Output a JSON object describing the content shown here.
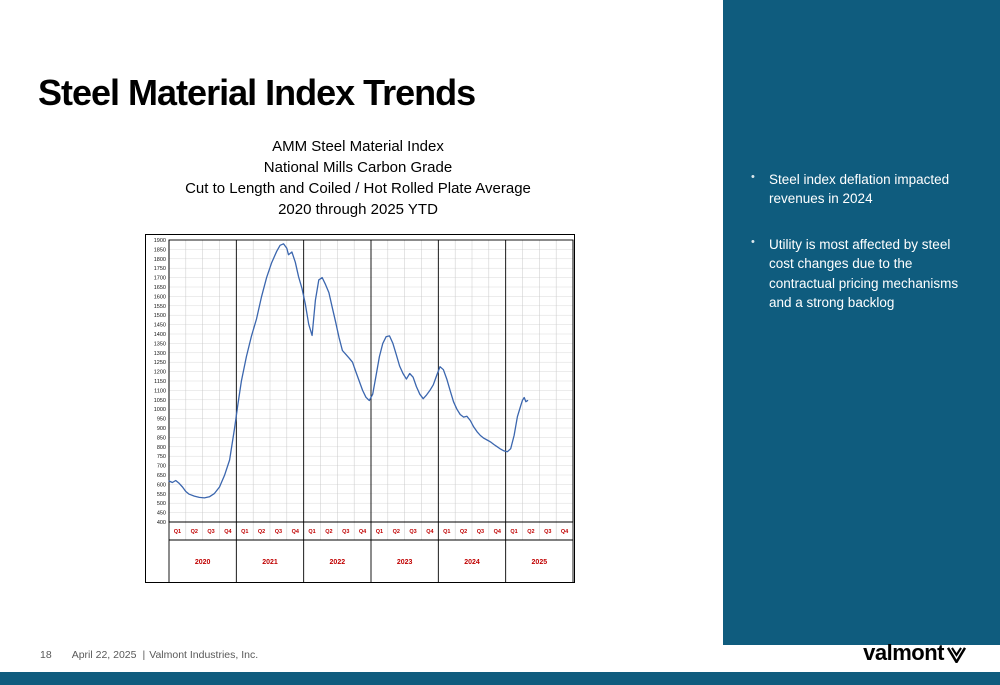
{
  "slide": {
    "title": "Steel Material Index Trends"
  },
  "theme": {
    "sidebar_color": "#0f5c7e",
    "line_color": "#3b66ae",
    "label_red": "#c00000",
    "footer_gray": "#595959"
  },
  "sidebar": {
    "bullets": [
      "Steel index deflation impacted revenues in 2024",
      "Utility is most affected by steel cost changes due to the contractual pricing mechanisms and a strong backlog"
    ]
  },
  "footer": {
    "page_number": "18",
    "date": "April 22, 2025",
    "separator": "|",
    "company": "Valmont Industries, Inc."
  },
  "logo": {
    "text": "valmont"
  },
  "chart_data": {
    "type": "line",
    "title_lines": [
      "AMM Steel Material Index",
      "National Mills Carbon Grade",
      "Cut to Length and Coiled / Hot Rolled Plate Average",
      "2020 through 2025 YTD"
    ],
    "ylim": [
      400,
      1900
    ],
    "ytick_step": 50,
    "years": [
      "2020",
      "2021",
      "2022",
      "2023",
      "2024",
      "2025"
    ],
    "quarters_per_year": [
      "Q1",
      "Q2",
      "Q3",
      "Q4"
    ],
    "x_unit": "quarters since start of 2020 Q1",
    "grid": true,
    "legend": "none",
    "series": [
      {
        "name": "AMM Steel Material Index",
        "points": [
          [
            0,
            618
          ],
          [
            0.2,
            610
          ],
          [
            0.4,
            621
          ],
          [
            0.6,
            606
          ],
          [
            0.8,
            586
          ],
          [
            1,
            562
          ],
          [
            1.2,
            548
          ],
          [
            1.5,
            538
          ],
          [
            1.8,
            531
          ],
          [
            2.1,
            528
          ],
          [
            2.4,
            534
          ],
          [
            2.7,
            552
          ],
          [
            3,
            586
          ],
          [
            3.3,
            648
          ],
          [
            3.6,
            730
          ],
          [
            3.9,
            900
          ],
          [
            4.1,
            1030
          ],
          [
            4.3,
            1150
          ],
          [
            4.6,
            1280
          ],
          [
            4.9,
            1390
          ],
          [
            5.2,
            1480
          ],
          [
            5.5,
            1600
          ],
          [
            5.8,
            1700
          ],
          [
            6.1,
            1780
          ],
          [
            6.4,
            1840
          ],
          [
            6.6,
            1872
          ],
          [
            6.8,
            1880
          ],
          [
            7,
            1856
          ],
          [
            7.1,
            1822
          ],
          [
            7.3,
            1836
          ],
          [
            7.5,
            1782
          ],
          [
            7.7,
            1704
          ],
          [
            7.9,
            1642
          ],
          [
            8.1,
            1560
          ],
          [
            8.3,
            1452
          ],
          [
            8.5,
            1392
          ],
          [
            8.7,
            1580
          ],
          [
            8.9,
            1688
          ],
          [
            9.1,
            1700
          ],
          [
            9.3,
            1662
          ],
          [
            9.5,
            1620
          ],
          [
            9.7,
            1540
          ],
          [
            9.9,
            1462
          ],
          [
            10.1,
            1382
          ],
          [
            10.3,
            1312
          ],
          [
            10.5,
            1292
          ],
          [
            10.7,
            1272
          ],
          [
            10.9,
            1250
          ],
          [
            11.1,
            1200
          ],
          [
            11.3,
            1150
          ],
          [
            11.5,
            1100
          ],
          [
            11.7,
            1064
          ],
          [
            11.9,
            1046
          ],
          [
            12.1,
            1080
          ],
          [
            12.3,
            1180
          ],
          [
            12.5,
            1280
          ],
          [
            12.7,
            1350
          ],
          [
            12.9,
            1386
          ],
          [
            13.1,
            1390
          ],
          [
            13.3,
            1350
          ],
          [
            13.5,
            1290
          ],
          [
            13.7,
            1230
          ],
          [
            13.9,
            1190
          ],
          [
            14.1,
            1160
          ],
          [
            14.3,
            1190
          ],
          [
            14.5,
            1170
          ],
          [
            14.7,
            1120
          ],
          [
            14.9,
            1080
          ],
          [
            15.1,
            1056
          ],
          [
            15.3,
            1076
          ],
          [
            15.5,
            1100
          ],
          [
            15.7,
            1130
          ],
          [
            15.9,
            1180
          ],
          [
            16.1,
            1226
          ],
          [
            16.3,
            1210
          ],
          [
            16.5,
            1160
          ],
          [
            16.7,
            1100
          ],
          [
            16.9,
            1040
          ],
          [
            17.1,
            1000
          ],
          [
            17.3,
            972
          ],
          [
            17.5,
            958
          ],
          [
            17.7,
            962
          ],
          [
            17.9,
            940
          ],
          [
            18.1,
            906
          ],
          [
            18.3,
            880
          ],
          [
            18.5,
            860
          ],
          [
            18.7,
            846
          ],
          [
            18.9,
            836
          ],
          [
            19.1,
            826
          ],
          [
            19.3,
            812
          ],
          [
            19.5,
            800
          ],
          [
            19.7,
            788
          ],
          [
            19.9,
            778
          ],
          [
            20.1,
            774
          ],
          [
            20.3,
            790
          ],
          [
            20.5,
            860
          ],
          [
            20.7,
            960
          ],
          [
            20.9,
            1020
          ],
          [
            21,
            1048
          ],
          [
            21.1,
            1062
          ],
          [
            21.2,
            1040
          ],
          [
            21.3,
            1046
          ]
        ]
      }
    ]
  }
}
